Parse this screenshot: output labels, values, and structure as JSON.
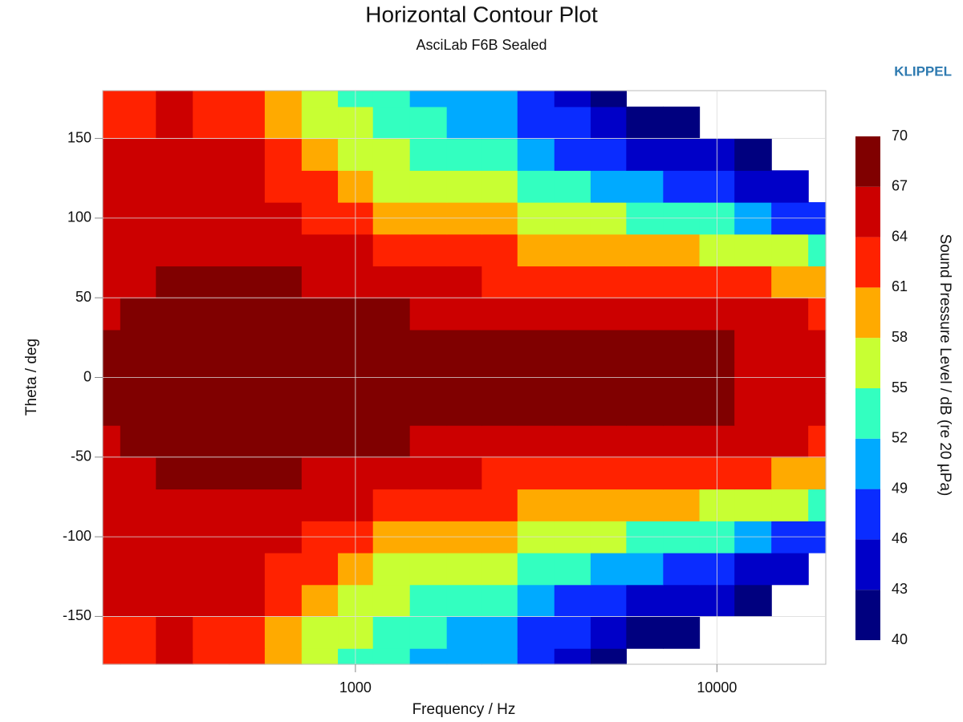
{
  "chart_data": {
    "type": "contour",
    "title": "Horizontal Contour Plot",
    "subtitle": "AsciLab F6B Sealed",
    "brand": "KLIPPEL",
    "x_label": "Frequency / Hz",
    "y_label": "Theta / deg",
    "colorbar_label": "Sound Pressure Level / dB (re 20 µPa)",
    "x_log": true,
    "xlim": [
      200,
      20000
    ],
    "xticks": [
      1000,
      10000
    ],
    "ylim": [
      -180,
      180
    ],
    "yticks": [
      -150,
      -100,
      -50,
      0,
      50,
      100,
      150
    ],
    "grid": true,
    "levels": [
      40,
      43,
      46,
      49,
      52,
      55,
      58,
      61,
      64,
      67,
      70
    ],
    "colors": [
      "#00007f",
      "#0000c8",
      "#0a2cff",
      "#00aaff",
      "#33ffc0",
      "#c8ff33",
      "#ffaa00",
      "#ff2200",
      "#cc0000",
      "#800000"
    ],
    "x": [
      200,
      250,
      315,
      400,
      500,
      630,
      800,
      1000,
      1250,
      1600,
      2000,
      2500,
      3150,
      4000,
      5000,
      6300,
      8000,
      10000,
      12500,
      16000,
      20000
    ],
    "y": [
      -180,
      -160,
      -140,
      -120,
      -100,
      -80,
      -60,
      -40,
      -20,
      0,
      20,
      40,
      60,
      80,
      100,
      120,
      140,
      160,
      180
    ],
    "z": [
      [
        63,
        62.5,
        64,
        62.5,
        62.5,
        59.5,
        56.5,
        54,
        52,
        51,
        50,
        49,
        47,
        45,
        42,
        null,
        null,
        null,
        null,
        null,
        null
      ],
      [
        63,
        63,
        65,
        63,
        63,
        60,
        57.5,
        55,
        53,
        52,
        51,
        50,
        48,
        46,
        43,
        42,
        41,
        null,
        null,
        null,
        null
      ],
      [
        65,
        64.5,
        64,
        64.5,
        64,
        61.5,
        59,
        57,
        55,
        54,
        53,
        52,
        50.5,
        48,
        46,
        45,
        44,
        43,
        41,
        null,
        null
      ],
      [
        65,
        65,
        65,
        65,
        64.5,
        63,
        61,
        59.5,
        57.5,
        56,
        55.5,
        55,
        54,
        52,
        50,
        49,
        48,
        47,
        45,
        43,
        null
      ],
      [
        65,
        65.5,
        65.5,
        65.5,
        65,
        64.5,
        63.5,
        62,
        60.5,
        59,
        58.5,
        58,
        57,
        56,
        55,
        54,
        53,
        52,
        50,
        48,
        46
      ],
      [
        65,
        65.5,
        66,
        66,
        66,
        65.5,
        65,
        64,
        63,
        62,
        61.5,
        61,
        60,
        59,
        58.5,
        58.5,
        58,
        57,
        56,
        55,
        53
      ],
      [
        65,
        66,
        67.5,
        67.5,
        67.6,
        67,
        66,
        65.5,
        65,
        64.5,
        64,
        63.5,
        63,
        62.5,
        62,
        62,
        62,
        61.5,
        61,
        60.5,
        60
      ],
      [
        66,
        68,
        68.5,
        68.5,
        68.5,
        68,
        67.5,
        67.5,
        67,
        66.5,
        66,
        66,
        65.5,
        65.5,
        65.2,
        65,
        65,
        65,
        64.5,
        64,
        63.5
      ],
      [
        67.5,
        68.5,
        69,
        69,
        69,
        68.5,
        68,
        68,
        68,
        67.8,
        67.5,
        67.3,
        67.2,
        67,
        67,
        67.1,
        67.5,
        67.2,
        66,
        65.5,
        65
      ],
      [
        68,
        68.5,
        69,
        69,
        69,
        68.5,
        68.5,
        68,
        68,
        68,
        67.8,
        67.6,
        67.5,
        67.3,
        67.2,
        67.4,
        68,
        67.5,
        66.5,
        66,
        65.5
      ],
      [
        67.5,
        68.5,
        69,
        69,
        69,
        68.5,
        68,
        68,
        68,
        67.8,
        67.5,
        67.3,
        67.2,
        67,
        67,
        67.1,
        67.5,
        67.2,
        66,
        65.5,
        65
      ],
      [
        66,
        68,
        68.5,
        68.5,
        68.5,
        68,
        67.5,
        67.5,
        67,
        66.5,
        66,
        66,
        65.5,
        65.5,
        65.2,
        65,
        65,
        65,
        64.5,
        64,
        63.5
      ],
      [
        65,
        66,
        67.5,
        67.5,
        67.6,
        67,
        66,
        65.5,
        65,
        64.5,
        64,
        63.5,
        63,
        62.5,
        62,
        62,
        62,
        61.5,
        61,
        60.5,
        60
      ],
      [
        65,
        65.5,
        66,
        66,
        66,
        65.5,
        65,
        64,
        63,
        62,
        61.5,
        61,
        60,
        59,
        58.5,
        58.5,
        58,
        57,
        56,
        55,
        53
      ],
      [
        65,
        65.5,
        65.5,
        65.5,
        65,
        64.5,
        63.5,
        62,
        60.5,
        59,
        58.5,
        58,
        57,
        56,
        55,
        54,
        53,
        52,
        50,
        48,
        46
      ],
      [
        65,
        65,
        65,
        65,
        64.5,
        63,
        61,
        59.5,
        57.5,
        56,
        55.5,
        55,
        54,
        52,
        50,
        49,
        48,
        47,
        45,
        43,
        null
      ],
      [
        65,
        64.5,
        64,
        64.5,
        64,
        61.5,
        59,
        57,
        55,
        54,
        53,
        52,
        50.5,
        48,
        46,
        45,
        44,
        43,
        41,
        null,
        null
      ],
      [
        63,
        63,
        65,
        63,
        63,
        60,
        57.5,
        55,
        53,
        52,
        51,
        50,
        48,
        46,
        43,
        42,
        41,
        null,
        null,
        null,
        null
      ],
      [
        63,
        62.5,
        64,
        62.5,
        62.5,
        59.5,
        56.5,
        54,
        52,
        51,
        50,
        49,
        47,
        45,
        42,
        null,
        null,
        null,
        null,
        null,
        null
      ]
    ]
  }
}
